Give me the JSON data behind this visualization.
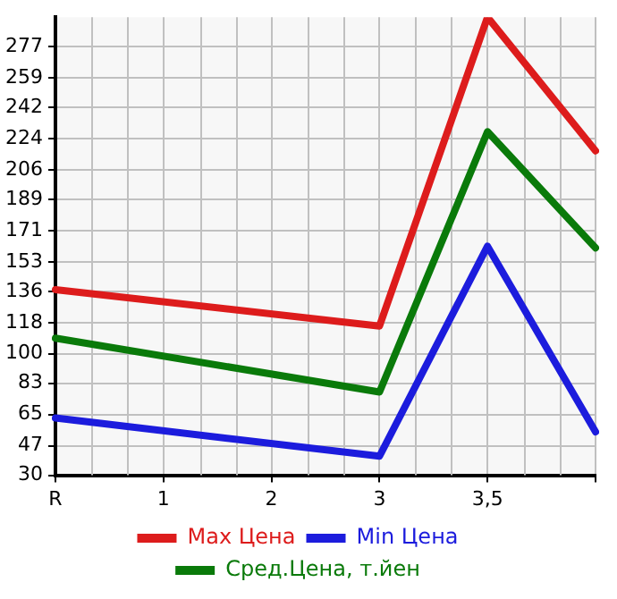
{
  "chart_data": {
    "type": "line",
    "categories": [
      "R",
      "1",
      "2",
      "3",
      "3,5",
      null
    ],
    "series": [
      {
        "name": "Max Цена",
        "color": "#dd1c1c",
        "values": [
          137,
          null,
          null,
          116,
          294,
          217
        ]
      },
      {
        "name": "Min Цена",
        "color": "#1c1cdd",
        "values": [
          63,
          null,
          null,
          41,
          162,
          55
        ]
      },
      {
        "name": "Сред.Цена, т.йен",
        "color": "#0a7a0a",
        "values": [
          109,
          null,
          null,
          78,
          228,
          161
        ]
      }
    ],
    "ylim": [
      30,
      294
    ],
    "yticks": [
      30,
      47,
      65,
      83,
      100,
      118,
      136,
      153,
      171,
      189,
      206,
      224,
      242,
      259,
      277
    ],
    "grid": true,
    "legend": "bottom",
    "marker": "none",
    "line_style": "solid"
  }
}
